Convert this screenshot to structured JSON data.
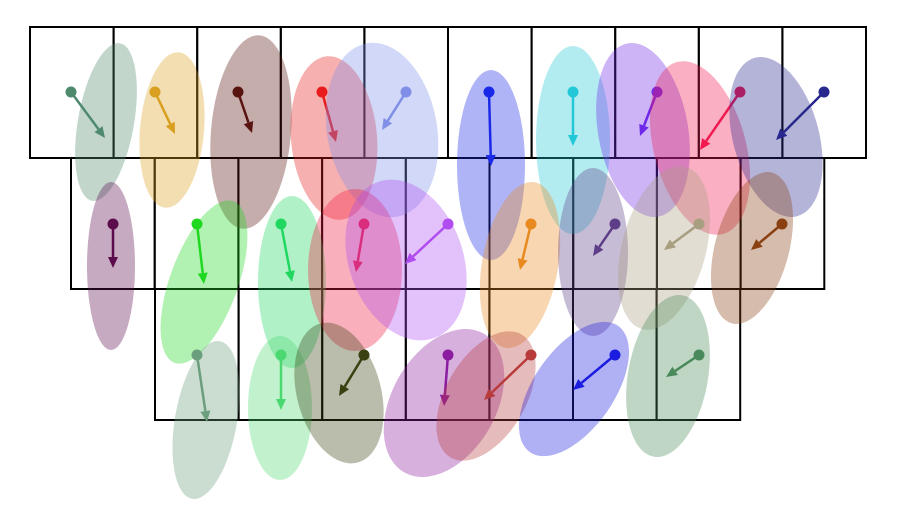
{
  "rows": [
    [
      "#4f8a6e",
      "#d9a020",
      "#5a1410",
      "#e81c1c",
      "#7f8fe8",
      "#1a28e8",
      "#22c8d8",
      "#7028e8",
      "#f01a50",
      "#28288e"
    ],
    [
      "#5c0c4c",
      "#20d820",
      "#20d860",
      "#f01c40",
      "#b04cf0",
      "#e88a20",
      "#5e3e88",
      "#a89e80",
      "#8a4010"
    ],
    [
      "#6a9e7c",
      "#4cd870",
      "#3a4010",
      "#8c1ca0",
      "#b83c3c",
      "#1c1ce0",
      "#4a8a5a"
    ]
  ]
}
